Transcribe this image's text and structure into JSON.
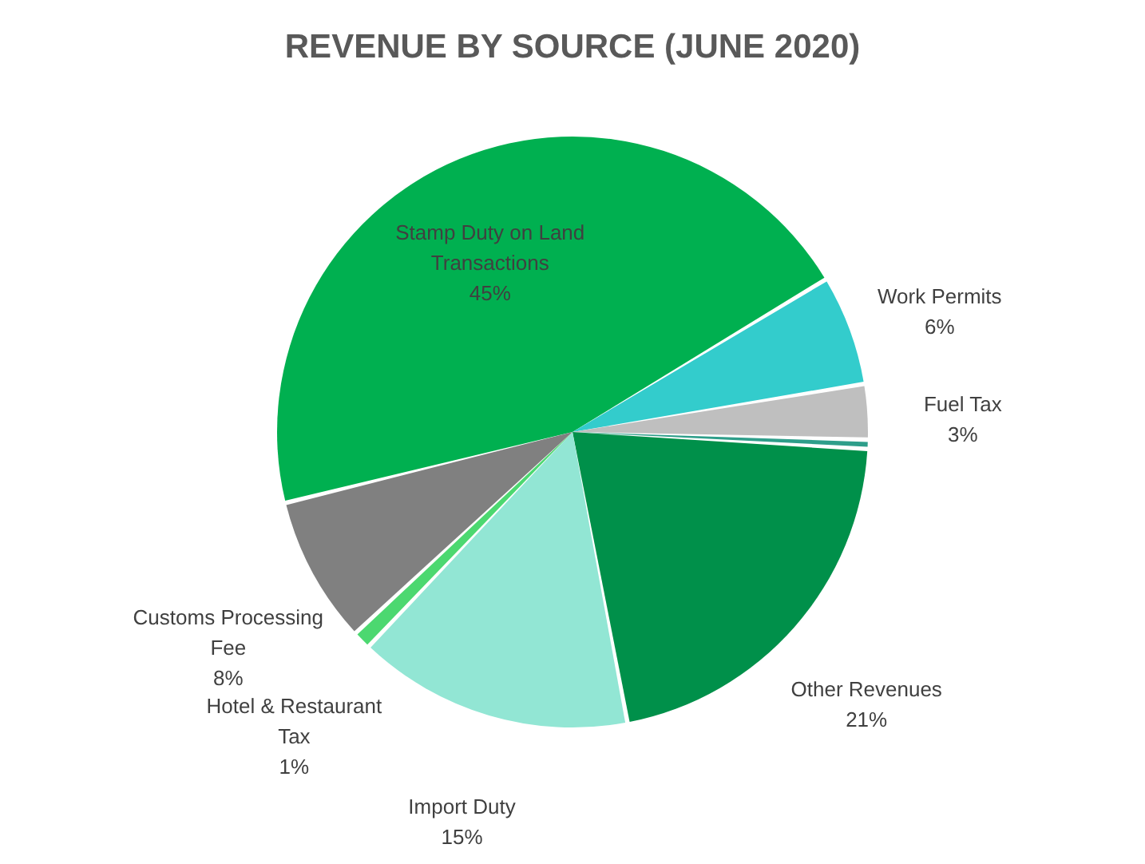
{
  "chart_data": {
    "type": "pie",
    "title": "REVENUE BY SOURCE (JUNE 2020)",
    "categories": [
      "Stamp Duty on Land Transactions",
      "Work Permits",
      "Fuel Tax",
      null,
      "Other Revenues",
      "Import Duty",
      "Hotel & Restaurant Tax",
      "Customs Processing Fee"
    ],
    "values": [
      45,
      6,
      3,
      0.5,
      21,
      15,
      1,
      8
    ],
    "value_labels": [
      "45%",
      "6%",
      "3%",
      null,
      "21%",
      "15%",
      "1%",
      "8%"
    ],
    "colors": [
      "#00b050",
      "#33cccc",
      "#bfbfbf",
      "#2e9e8a",
      "#00904a",
      "#92e6d4",
      "#4cd870",
      "#808080"
    ],
    "legend": false
  }
}
